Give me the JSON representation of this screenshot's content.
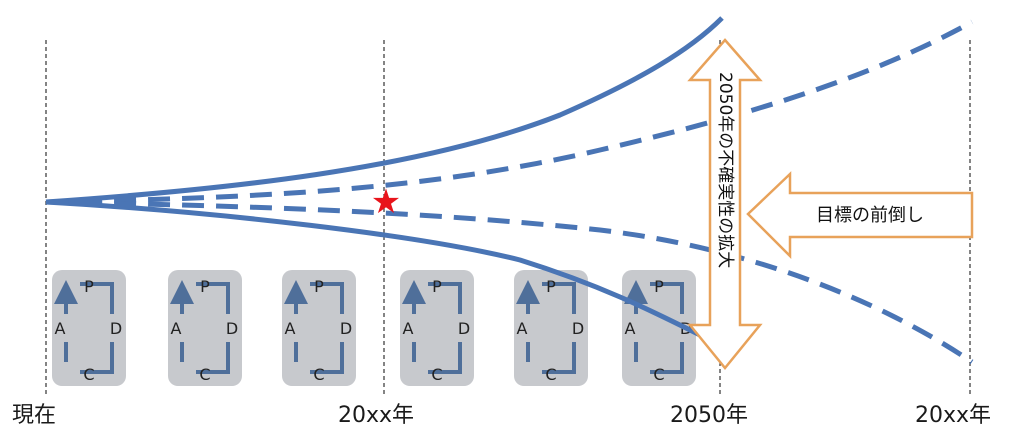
{
  "timeline": {
    "labels": [
      "現在",
      "20xx年",
      "2050年",
      "20xx年"
    ]
  },
  "pdca": {
    "letters": [
      "P",
      "D",
      "C",
      "A"
    ],
    "count": 6
  },
  "uncertainty_arrow": {
    "label": "2050年の不確実性の拡大"
  },
  "target_arrow": {
    "label": "目標の前倒し"
  },
  "marker": {
    "symbol": "★",
    "color": "#e8141b"
  },
  "colors": {
    "line": "#4a75b5",
    "arrow_border": "#e8a25a",
    "pdca_bg": "#c7c9cd",
    "pdca_arrow": "#4f6f9a",
    "guide": "#333333"
  }
}
